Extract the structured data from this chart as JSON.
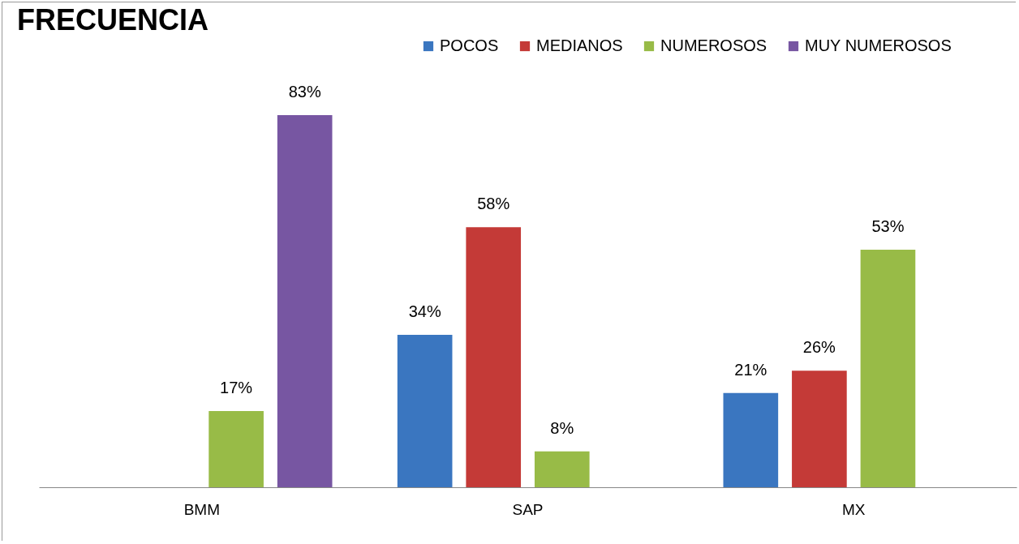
{
  "chart_data": {
    "type": "bar",
    "title": "FRECUENCIA",
    "categories": [
      "BMM",
      "SAP",
      "MX"
    ],
    "series": [
      {
        "name": "POCOS",
        "color": "#3a76c0",
        "values": [
          null,
          34,
          21
        ],
        "value_labels": [
          null,
          "34%",
          "21%"
        ]
      },
      {
        "name": "MEDIANOS",
        "color": "#c43a37",
        "values": [
          null,
          58,
          26
        ],
        "value_labels": [
          null,
          "58%",
          "26%"
        ]
      },
      {
        "name": "NUMEROSOS",
        "color": "#98bb47",
        "values": [
          17,
          8,
          53
        ],
        "value_labels": [
          "17%",
          "8%",
          "53%"
        ]
      },
      {
        "name": "MUY NUMEROSOS",
        "color": "#7756a2",
        "values": [
          83,
          null,
          null
        ],
        "value_labels": [
          "83%",
          null,
          null
        ]
      }
    ],
    "legend": "top right",
    "grid": false
  }
}
